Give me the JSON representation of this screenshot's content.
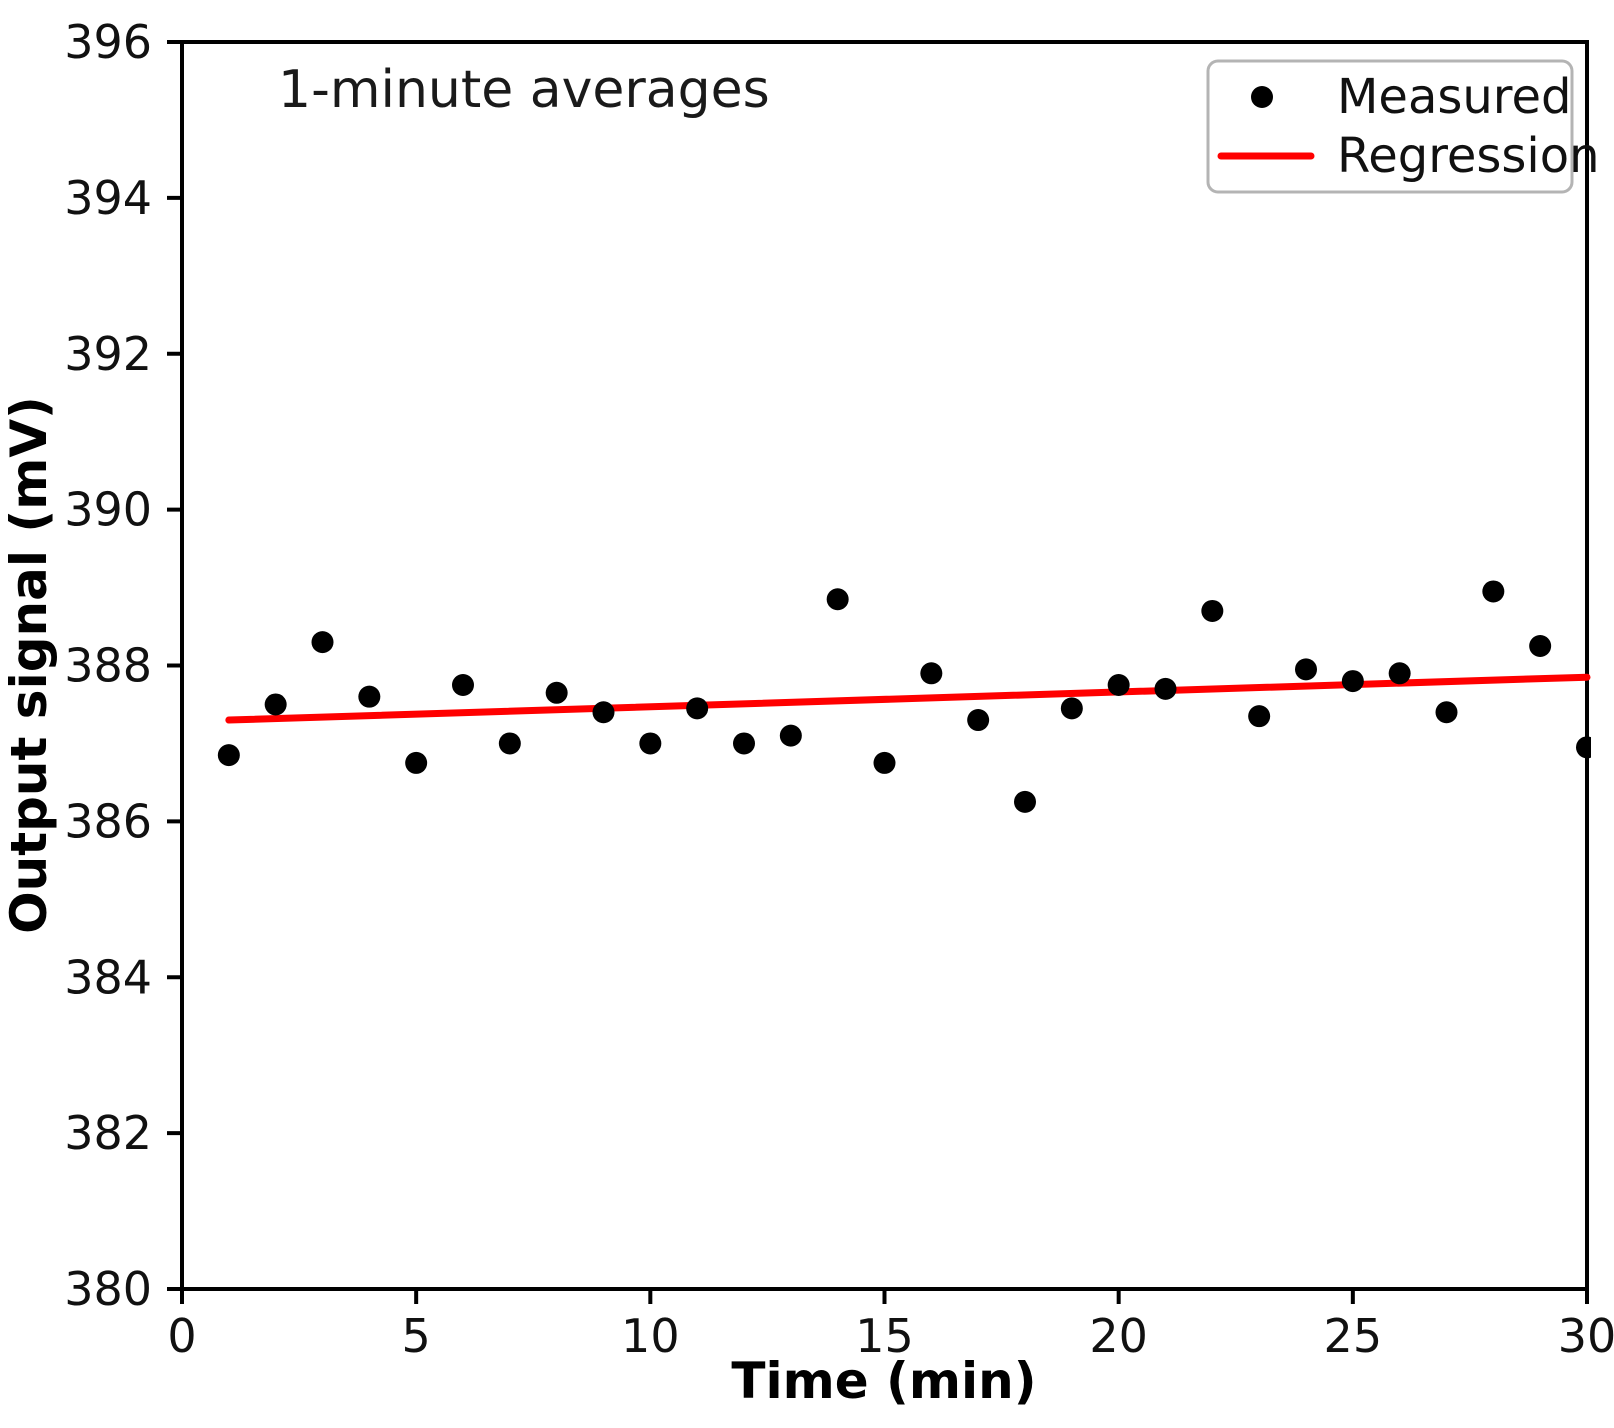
{
  "chart_data": {
    "type": "scatter",
    "title": "1-minute averages",
    "annotation": "1-minute averages",
    "xlabel": "Time (min)",
    "ylabel": "Output signal (mV)",
    "xlim": [
      0,
      30
    ],
    "ylim": [
      380,
      396
    ],
    "x_ticks": [
      0,
      5,
      10,
      15,
      20,
      25,
      30
    ],
    "y_ticks": [
      380,
      382,
      384,
      386,
      388,
      390,
      392,
      394,
      396
    ],
    "grid": false,
    "legend_position": "upper right",
    "series": [
      {
        "name": "Measured",
        "type": "scatter",
        "marker": "dot",
        "color": "#000000",
        "x": [
          1,
          2,
          3,
          4,
          5,
          6,
          7,
          8,
          9,
          10,
          11,
          12,
          13,
          14,
          15,
          16,
          17,
          18,
          19,
          20,
          21,
          22,
          23,
          24,
          25,
          26,
          27,
          28,
          29,
          30
        ],
        "y": [
          386.85,
          387.5,
          388.3,
          387.6,
          386.75,
          387.75,
          387.0,
          387.65,
          387.4,
          387.0,
          387.45,
          387.0,
          387.1,
          388.85,
          386.75,
          387.9,
          387.3,
          386.25,
          387.45,
          387.75,
          387.7,
          388.7,
          387.35,
          387.95,
          387.8,
          387.9,
          387.4,
          388.95,
          388.25,
          386.95
        ]
      },
      {
        "name": "Regression",
        "type": "line",
        "color": "#ff0000",
        "x": [
          1,
          30
        ],
        "y": [
          387.3,
          387.85
        ]
      }
    ],
    "colors": {
      "measured": "#000000",
      "regression": "#ff0000",
      "axes": "#000000",
      "legend_border": "#b4b4b4",
      "background": "#ffffff"
    }
  }
}
